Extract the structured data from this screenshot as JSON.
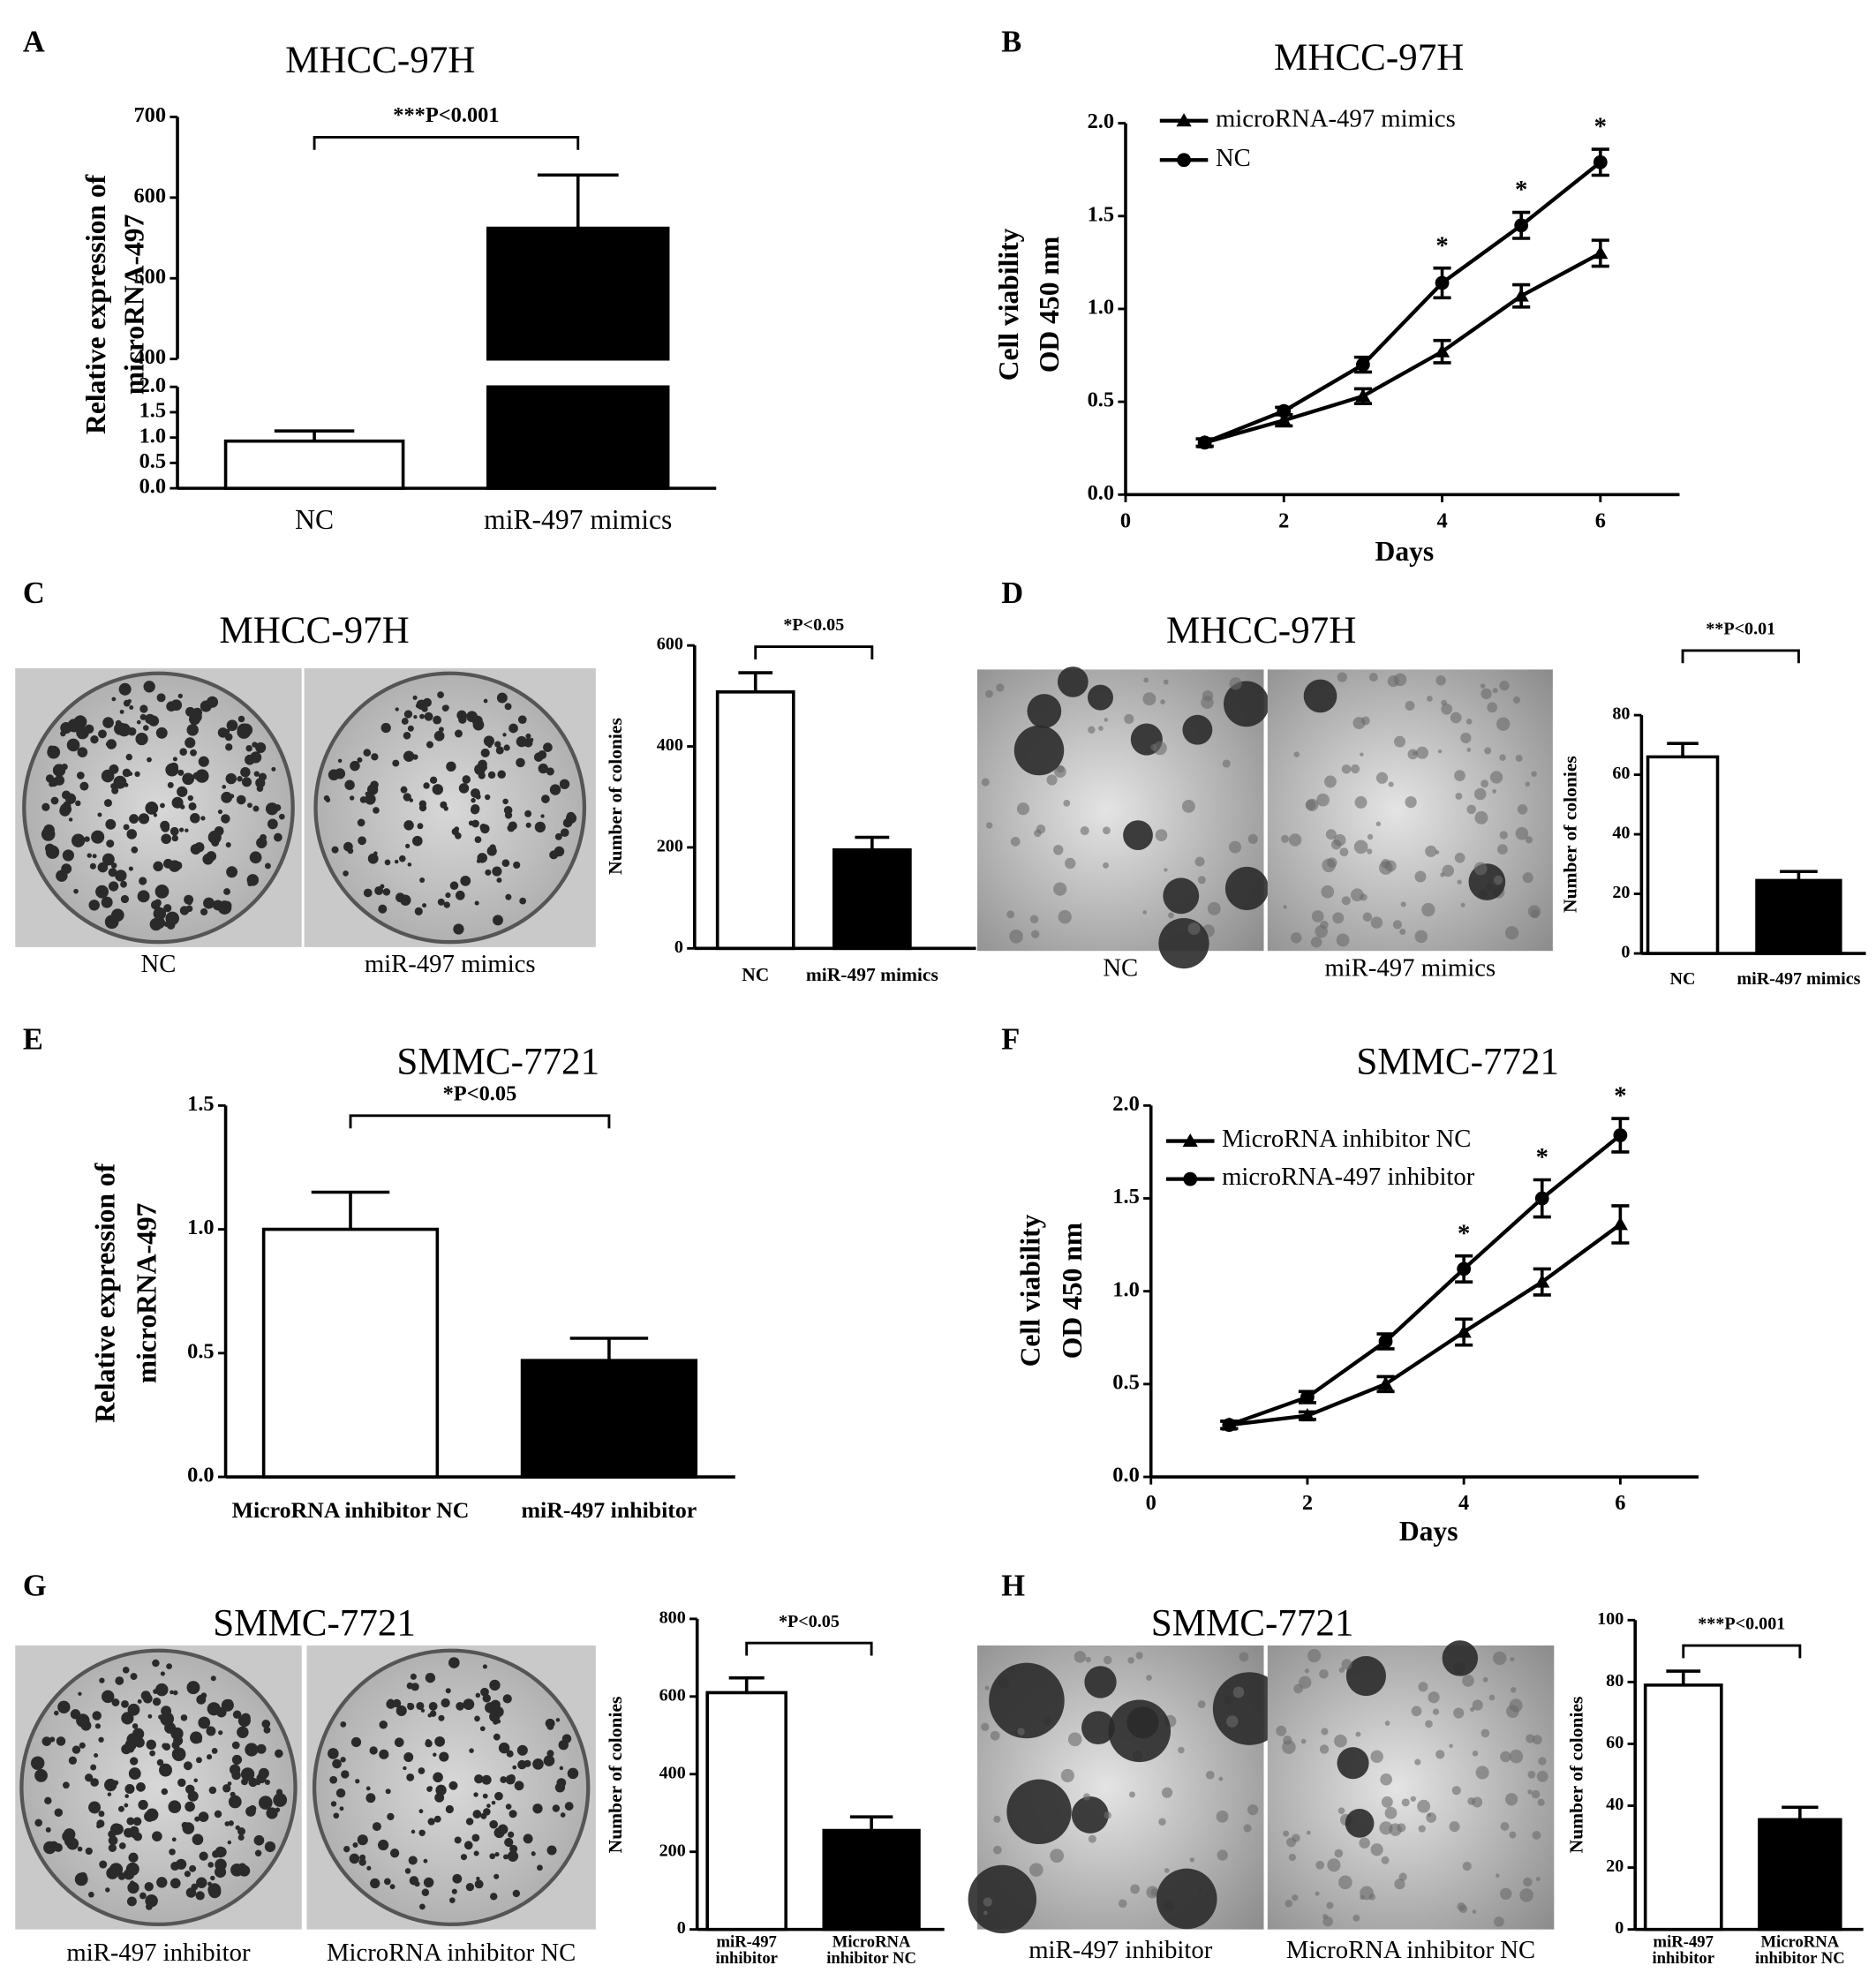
{
  "panel_labels": [
    "A",
    "B",
    "C",
    "D",
    "E",
    "F",
    "G",
    "H"
  ],
  "photos": [
    {
      "title": "MHCC-97H",
      "captions": [
        "NC",
        "miR-497 mimics"
      ]
    },
    {
      "title": "MHCC-97H",
      "captions": [
        "NC",
        "miR-497 mimics"
      ]
    },
    {
      "title": "SMMC-7721",
      "captions": [
        "miR-497 inhibitor",
        "MicroRNA inhibitor NC"
      ]
    },
    {
      "title": "SMMC-7721",
      "captions": [
        "miR-497 inhibitor",
        "MicroRNA inhibitor NC"
      ]
    }
  ],
  "chart_data": [
    {
      "type": "bar",
      "title": "MHCC-97H",
      "ylabel": [
        "Relative expression of",
        "microRNA-497"
      ],
      "categories": [
        "NC",
        "miR-497 mimics"
      ],
      "values": [
        0.93,
        562
      ],
      "errors": [
        0.2,
        66
      ],
      "colors": [
        "#ffffff",
        "#000000"
      ],
      "ylim": [
        0,
        700
      ],
      "ybreak": [
        2,
        400
      ],
      "yticks": [
        {
          "value": 0,
          "label": "0.0"
        },
        0.5,
        {
          "value": 1,
          "label": "1.0"
        },
        1.5,
        {
          "value": 2,
          "label": "2.0"
        },
        400,
        500,
        600,
        700
      ],
      "annotation": "***P<0.001"
    },
    {
      "type": "line",
      "title": "MHCC-97H",
      "xlabel": "Days",
      "ylabel": [
        "Cell viability",
        "OD 450 nm"
      ],
      "x": [
        1,
        2,
        3,
        4,
        5,
        6
      ],
      "series": [
        {
          "name": "microRNA-497 mimics",
          "color": "#000000",
          "marker": "triangle",
          "values": [
            0.28,
            0.4,
            0.53,
            0.77,
            1.07,
            1.3
          ],
          "errors": [
            0.02,
            0.03,
            0.04,
            0.06,
            0.06,
            0.07
          ]
        },
        {
          "name": "NC",
          "color": "#000000",
          "marker": "circle",
          "values": [
            0.28,
            0.45,
            0.7,
            1.14,
            1.45,
            1.79
          ],
          "errors": [
            0.02,
            0.02,
            0.04,
            0.08,
            0.07,
            0.07
          ]
        }
      ],
      "xlim": [
        0,
        7
      ],
      "xticks": [
        0,
        2,
        4,
        6
      ],
      "ylim": [
        0,
        2
      ],
      "yticks": [
        {
          "value": 0,
          "label": "0.0"
        },
        0.5,
        {
          "value": 1,
          "label": "1.0"
        },
        1.5,
        {
          "value": 2,
          "label": "2.0"
        }
      ],
      "annotations": [
        {
          "x": 4,
          "text": "*"
        },
        {
          "x": 5,
          "text": "*"
        },
        {
          "x": 6,
          "text": "*"
        }
      ],
      "legend": "upper left"
    },
    {
      "type": "bar",
      "ylabel": [
        "Number of colonies"
      ],
      "categories": [
        "NC",
        "miR-497 mimics"
      ],
      "values": [
        508,
        195
      ],
      "errors": [
        38,
        25
      ],
      "colors": [
        "#ffffff",
        "#000000"
      ],
      "ylim": [
        0,
        600
      ],
      "yticks": [
        0,
        200,
        400,
        600
      ],
      "annotation": "*P<0.05"
    },
    {
      "type": "bar",
      "ylabel": [
        "Number of colonies"
      ],
      "categories": [
        "NC",
        "miR-497 mimics"
      ],
      "values": [
        66,
        24.5
      ],
      "errors": [
        4.5,
        3
      ],
      "colors": [
        "#ffffff",
        "#000000"
      ],
      "ylim": [
        0,
        80
      ],
      "yticks": [
        0,
        20,
        40,
        60,
        80
      ],
      "annotation": "**P<0.01"
    },
    {
      "type": "bar",
      "title": "SMMC-7721",
      "ylabel": [
        "Relative expression of",
        "microRNA-497"
      ],
      "categories": [
        "MicroRNA inhibitor NC",
        "miR-497 inhibitor"
      ],
      "values": [
        1.0,
        0.47
      ],
      "errors": [
        0.15,
        0.09
      ],
      "colors": [
        "#ffffff",
        "#000000"
      ],
      "ylim": [
        0,
        1.5
      ],
      "yticks": [
        {
          "value": 0,
          "label": "0.0"
        },
        0.5,
        {
          "value": 1,
          "label": "1.0"
        },
        1.5
      ],
      "annotation": "*P<0.05"
    },
    {
      "type": "line",
      "title": "SMMC-7721",
      "xlabel": "Days",
      "ylabel": [
        "Cell viability",
        "OD 450 nm"
      ],
      "x": [
        1,
        2,
        3,
        4,
        5,
        6
      ],
      "series": [
        {
          "name": "MicroRNA inhibitor NC",
          "color": "#000000",
          "marker": "triangle",
          "values": [
            0.28,
            0.33,
            0.5,
            0.78,
            1.05,
            1.36
          ],
          "errors": [
            0.02,
            0.02,
            0.04,
            0.07,
            0.07,
            0.1
          ]
        },
        {
          "name": "microRNA-497 inhibitor",
          "color": "#000000",
          "marker": "circle",
          "values": [
            0.28,
            0.43,
            0.73,
            1.12,
            1.5,
            1.84
          ],
          "errors": [
            0.02,
            0.03,
            0.04,
            0.07,
            0.1,
            0.09
          ]
        }
      ],
      "xlim": [
        0,
        7
      ],
      "xticks": [
        0,
        2,
        4,
        6
      ],
      "ylim": [
        0,
        2
      ],
      "yticks": [
        {
          "value": 0,
          "label": "0.0"
        },
        0.5,
        {
          "value": 1,
          "label": "1.0"
        },
        1.5,
        {
          "value": 2,
          "label": "2.0"
        }
      ],
      "annotations": [
        {
          "x": 4,
          "text": "*"
        },
        {
          "x": 5,
          "text": "*"
        },
        {
          "x": 6,
          "text": "*"
        }
      ],
      "legend": "upper left"
    },
    {
      "type": "bar",
      "ylabel": [
        "Number of colonies"
      ],
      "categories": [
        "miR-497 inhibitor",
        "MicroRNA inhibitor NC"
      ],
      "values": [
        610,
        255
      ],
      "errors": [
        38,
        35
      ],
      "colors": [
        "#ffffff",
        "#000000"
      ],
      "ylim": [
        0,
        800
      ],
      "yticks": [
        0,
        200,
        400,
        600,
        800
      ],
      "annotation": "*P<0.05"
    },
    {
      "type": "bar",
      "ylabel": [
        "Number of colonies"
      ],
      "categories": [
        "miR-497 inhibitor",
        "MicroRNA inhibitor NC"
      ],
      "values": [
        79,
        35.5
      ],
      "errors": [
        4.5,
        4
      ],
      "colors": [
        "#ffffff",
        "#000000"
      ],
      "ylim": [
        0,
        100
      ],
      "yticks": [
        0,
        20,
        40,
        60,
        80,
        100
      ],
      "annotation": "***P<0.001"
    }
  ]
}
